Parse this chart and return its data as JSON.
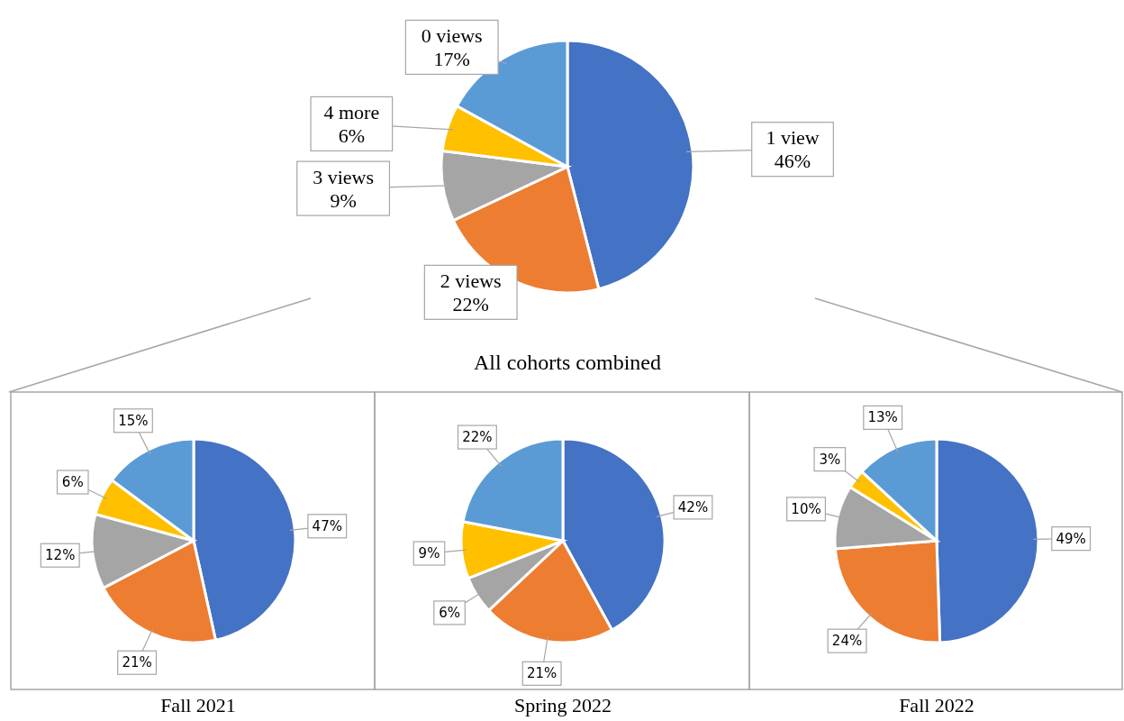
{
  "chart_data": [
    {
      "type": "pie",
      "title": "All cohorts combined",
      "categories": [
        "1 view",
        "2 views",
        "3 views",
        "4 more",
        "0 views"
      ],
      "values": [
        46,
        22,
        9,
        6,
        17
      ],
      "colors": [
        "#4472c4",
        "#ed7d31",
        "#a5a5a5",
        "#ffc000",
        "#5b9bd5"
      ],
      "value_labels": [
        "46%",
        "22%",
        "9%",
        "6%",
        "17%"
      ]
    },
    {
      "type": "pie",
      "title": "Fall 2021",
      "categories": [
        null,
        null,
        null,
        null,
        null
      ],
      "values": [
        47,
        21,
        12,
        6,
        15
      ],
      "colors": [
        "#4472c4",
        "#ed7d31",
        "#a5a5a5",
        "#ffc000",
        "#5b9bd5"
      ],
      "value_labels": [
        "47%",
        "21%",
        "12%",
        "6%",
        "15%"
      ]
    },
    {
      "type": "pie",
      "title": "Spring 2022",
      "categories": [
        null,
        null,
        null,
        null,
        null
      ],
      "values": [
        42,
        21,
        6,
        9,
        22
      ],
      "colors": [
        "#4472c4",
        "#ed7d31",
        "#a5a5a5",
        "#ffc000",
        "#5b9bd5"
      ],
      "value_labels": [
        "42%",
        "21%",
        "6%",
        "9%",
        "22%"
      ]
    },
    {
      "type": "pie",
      "title": "Fall 2022",
      "categories": [
        null,
        null,
        null,
        null,
        null
      ],
      "values": [
        49,
        24,
        10,
        3,
        13
      ],
      "colors": [
        "#4472c4",
        "#ed7d31",
        "#a5a5a5",
        "#ffc000",
        "#5b9bd5"
      ],
      "value_labels": [
        "49%",
        "24%",
        "10%",
        "3%",
        "13%"
      ]
    }
  ]
}
